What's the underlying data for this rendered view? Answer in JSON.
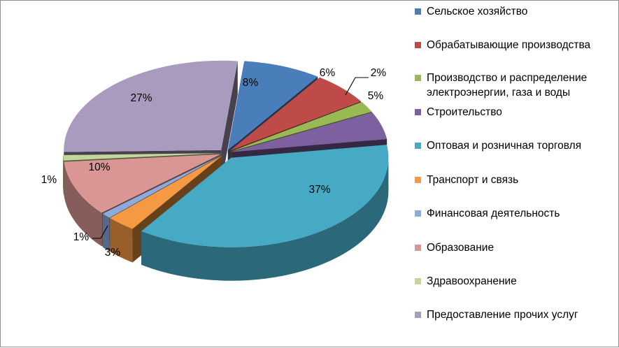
{
  "chart_data": {
    "type": "pie",
    "title": "",
    "legend_position": "right",
    "categories": [
      "Сельское хозяйство",
      "Обрабатывающие производства",
      "Производство и распределение электроэнергии, газа и воды",
      "Строительство",
      "Оптовая и розничная торговля",
      "Транспорт и связь",
      "Финансовая деятельность",
      "Образование",
      "Здравоохранение",
      "Предоставление прочих услуг"
    ],
    "values": [
      8,
      6,
      2,
      5,
      37,
      3,
      1,
      10,
      1,
      27
    ],
    "data_labels": [
      "8%",
      "6%",
      "2%",
      "5%",
      "37%",
      "3%",
      "1%",
      "10%",
      "1%",
      "27%"
    ],
    "colors": [
      "#4a7ebb",
      "#be4b48",
      "#98b954",
      "#7d60a0",
      "#46aac5",
      "#f59a43",
      "#8ea9db",
      "#d99694",
      "#c3d69b",
      "#a99bbd"
    ]
  },
  "legend": {
    "line2_of_item_3": "электроэнергии, газа и воды"
  }
}
